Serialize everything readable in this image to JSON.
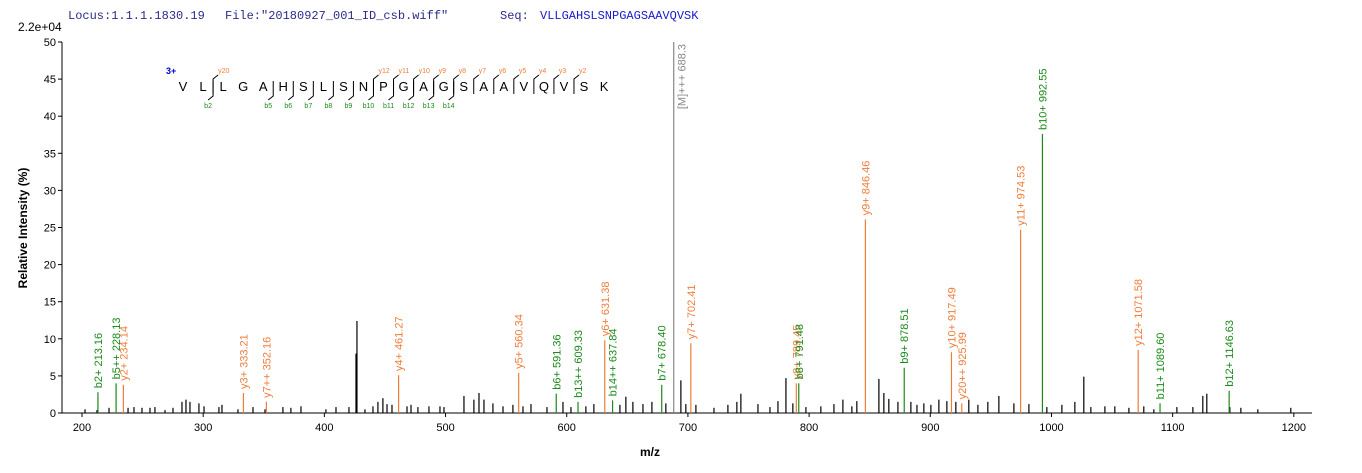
{
  "header": {
    "locus": "Locus:1.1.1.1830.19",
    "file": "File:\"20180927_001_ID_csb.wiff\"",
    "seq_label": "Seq:",
    "seq": "VLLGAHSLSNPGAGSAAVQVSK"
  },
  "chart_data": {
    "type": "stem",
    "xlabel": "m/z",
    "ylabel": "Relative  Intensity (%)",
    "scale_label": "2.2e+04",
    "xlim": [
      183.5,
      1215
    ],
    "ylim": [
      0,
      50
    ],
    "xticks": [
      200,
      300,
      400,
      500,
      600,
      700,
      800,
      900,
      1000,
      1100,
      1200
    ],
    "yticks": [
      0,
      5,
      10,
      15,
      20,
      25,
      30,
      35,
      40,
      45,
      50
    ],
    "series": [
      {
        "color": "#000000",
        "x": [
          202.5,
          212.4,
          222.3,
          238.0,
          242.9,
          249.5,
          256.1,
          260.2,
          268.5,
          275.1,
          282.5,
          285.8,
          289.1,
          296.5,
          300.7,
          313.0,
          315.5,
          328.7,
          341.1,
          351.0,
          365.8,
          372.4,
          380.7,
          401.3,
          409.6,
          420.3,
          426.1,
          426.9,
          433.5,
          440.1,
          444.2,
          448.3,
          451.7,
          455.8,
          468.2,
          471.5,
          477.2,
          486.3,
          495.4,
          498.7,
          515.2,
          523.4,
          527.6,
          531.7,
          539.1,
          547.4,
          555.6,
          563.9,
          570.5,
          583.7,
          596.9,
          603.5,
          615.8,
          622.4,
          643.9,
          648.8,
          654.6,
          662.9,
          670.3,
          681.8,
          694.2,
          698.3,
          706.6,
          721.5,
          733.0,
          740.4,
          743.7,
          757.8,
          767.7,
          774.3,
          780.9,
          786.6,
          797.4,
          809.7,
          820.5,
          827.9,
          835.3,
          839.4,
          857.6,
          861.7,
          865.8,
          873.3,
          884.0,
          889.0,
          894.7,
          900.5,
          907.1,
          913.7,
          921.1,
          931.8,
          939.3,
          947.5,
          956.6,
          969.0,
          981.4,
          996.2,
          1008.6,
          1019.3,
          1026.7,
          1032.5,
          1044.1,
          1052.3,
          1063.9,
          1076.2,
          1084.5,
          1103.5,
          1116.7,
          1124.9,
          1128.2,
          1147.2,
          1156.3,
          1170.3,
          1197.5
        ],
        "values": [
          0.5,
          0.4,
          0.7,
          0.7,
          0.8,
          0.7,
          0.7,
          0.8,
          0.4,
          0.7,
          1.5,
          1.8,
          1.5,
          1.3,
          0.9,
          0.8,
          1.1,
          0.5,
          0.8,
          0.5,
          0.8,
          0.7,
          0.9,
          0.5,
          0.8,
          0.8,
          8.0,
          12.4,
          0.5,
          0.9,
          1.5,
          2.0,
          1.2,
          1.1,
          0.9,
          1.1,
          0.8,
          0.9,
          0.9,
          0.8,
          2.3,
          1.8,
          2.7,
          1.8,
          1.3,
          0.9,
          1.1,
          0.9,
          1.2,
          0.8,
          1.5,
          0.8,
          0.9,
          1.2,
          1.1,
          2.2,
          1.5,
          1.2,
          1.5,
          1.3,
          4.4,
          1.2,
          1.1,
          0.7,
          1.1,
          1.5,
          2.6,
          1.2,
          0.8,
          1.6,
          4.7,
          1.3,
          0.8,
          0.9,
          1.2,
          1.8,
          0.9,
          1.6,
          4.6,
          2.7,
          1.9,
          1.5,
          1.5,
          1.1,
          1.3,
          1.1,
          1.8,
          1.6,
          1.5,
          1.8,
          1.1,
          1.5,
          2.3,
          1.3,
          1.2,
          0.8,
          1.1,
          1.5,
          4.9,
          0.8,
          0.9,
          0.9,
          0.7,
          0.9,
          0.5,
          0.8,
          0.8,
          2.3,
          2.6,
          0.8,
          0.7,
          0.5,
          0.7
        ]
      },
      {
        "x": [
          213.16,
          228.13,
          234.14,
          333.21,
          352.16,
          461.27,
          560.34,
          591.36,
          609.33,
          631.38,
          637.84,
          678.4,
          688.3,
          702.41,
          789.45,
          791.48,
          846.46,
          878.51,
          917.49,
          925.99,
          974.53,
          992.55,
          1071.58,
          1089.6,
          1146.63
        ],
        "values": [
          2.8,
          4.0,
          3.8,
          2.7,
          1.5,
          5.1,
          5.4,
          2.6,
          1.5,
          9.8,
          1.7,
          3.8,
          50,
          9.4,
          4.0,
          4.0,
          26.1,
          6.1,
          8.2,
          1.3,
          24.7,
          37.6,
          8.5,
          1.3,
          3.0
        ],
        "labels": [
          "b2+ 213.16",
          "b5++ 228.13",
          "y2+ 234.14",
          "y3+ 333.21",
          "y7++ 352.16",
          "y4+ 461.27",
          "y5+ 560.34",
          "b6+ 591.36",
          "b13++ 609.33",
          "y6+ 631.38",
          "b14++ 637.84",
          "b7+ 678.40",
          "[M]+++ 688.3",
          "y7+ 702.41",
          "y8+ 789.45",
          "b8+ 791.48",
          "y9+ 846.46",
          "b9+ 878.51",
          "y10+ 917.49",
          "y20++ 925.99",
          "y11+ 974.53",
          "b10+ 992.55",
          "y12+ 1071.58",
          "b11+ 1089.60",
          "b12+ 1146.63"
        ],
        "colors": [
          "#1b8a1b",
          "#1b8a1b",
          "#ef7d3a",
          "#ef7d3a",
          "#ef7d3a",
          "#ef7d3a",
          "#ef7d3a",
          "#1b8a1b",
          "#1b8a1b",
          "#ef7d3a",
          "#1b8a1b",
          "#1b8a1b",
          "#888888",
          "#ef7d3a",
          "#ef7d3a",
          "#1b8a1b",
          "#ef7d3a",
          "#1b8a1b",
          "#ef7d3a",
          "#ef7d3a",
          "#ef7d3a",
          "#1b8a1b",
          "#ef7d3a",
          "#1b8a1b",
          "#1b8a1b"
        ]
      }
    ],
    "sequence": {
      "charge": "3+",
      "charge_color": "#0000cc",
      "residues": [
        "V",
        "L",
        "L",
        "G",
        "A",
        "H",
        "S",
        "L",
        "S",
        "N",
        "P",
        "G",
        "A",
        "G",
        "S",
        "A",
        "A",
        "V",
        "Q",
        "V",
        "S",
        "K"
      ],
      "y_ions": [
        "y20",
        "y12",
        "y11",
        "y10",
        "y9",
        "y8",
        "y7",
        "y6",
        "y5",
        "y4",
        "y3",
        "y2"
      ],
      "y_color": "#ef7d3a",
      "b_ions": [
        "b2",
        "b5",
        "b6",
        "b7",
        "b8",
        "b9",
        "b10",
        "b11",
        "b12",
        "b13",
        "b14"
      ],
      "b_color": "#1b8a1b"
    }
  }
}
